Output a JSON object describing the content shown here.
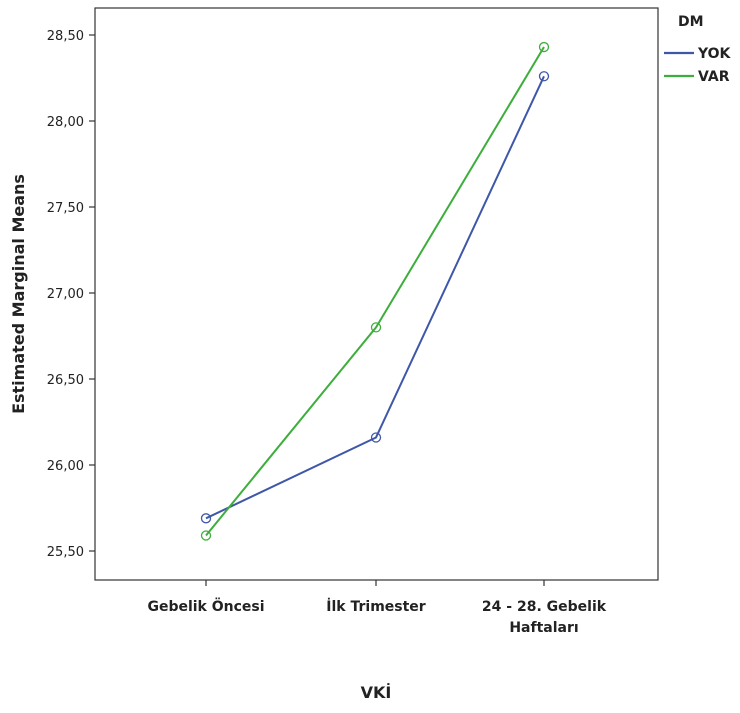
{
  "chart_data": {
    "type": "line",
    "categories": [
      [
        "Gebelik Öncesi"
      ],
      [
        "İlk Trimester"
      ],
      [
        "24 - 28. Gebelik",
        "Haftaları"
      ]
    ],
    "series": [
      {
        "name": "YOK",
        "color": "#3f57a8",
        "values": [
          25.69,
          26.16,
          28.26
        ]
      },
      {
        "name": "VAR",
        "color": "#3dae3b",
        "values": [
          25.59,
          26.8,
          28.43
        ]
      }
    ],
    "title": "",
    "xlabel": "VKİ",
    "ylabel": "Estimated Marginal Means",
    "ylim": [
      25.4,
      28.6
    ],
    "yticks": [
      25.5,
      26.0,
      26.5,
      27.0,
      27.5,
      28.0,
      28.5
    ],
    "ytick_labels": [
      "25,50",
      "26,00",
      "26,50",
      "27,00",
      "27,50",
      "28,00",
      "28,50"
    ],
    "grid": false,
    "legend": {
      "title": "DM",
      "placement": "right-top"
    }
  }
}
